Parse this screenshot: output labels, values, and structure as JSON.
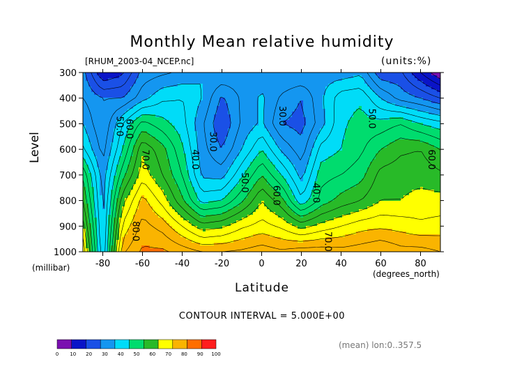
{
  "chart_data": {
    "type": "heatmap",
    "title": "Monthly Mean relative humidity",
    "subtitle": "[RHUM_2003-04_NCEP.nc]",
    "units_label": "(units:%)",
    "xlabel": "Latitude",
    "x_unit_label": "(degrees_north)",
    "ylabel": "Level",
    "y_unit_label": "(millibar)",
    "xlim": [
      -90,
      90
    ],
    "ylim": [
      1000,
      300
    ],
    "x_ticks": [
      -80,
      -60,
      -40,
      -20,
      0,
      20,
      40,
      60,
      80
    ],
    "y_ticks": [
      300,
      400,
      500,
      600,
      700,
      800,
      900,
      1000
    ],
    "contour_interval_label": "CONTOUR INTERVAL = 5.000E+00",
    "mean_note": "(mean) lon:0..357.5",
    "contour_labels": [
      {
        "text": "50.0",
        "lat": -73,
        "lev": 510
      },
      {
        "text": "60.0",
        "lat": -68,
        "lev": 520
      },
      {
        "text": "70.0",
        "lat": -60,
        "lev": 640
      },
      {
        "text": "80.0",
        "lat": -65,
        "lev": 920
      },
      {
        "text": "30.0",
        "lat": -26,
        "lev": 570
      },
      {
        "text": "40.0",
        "lat": -35,
        "lev": 640
      },
      {
        "text": "50.0",
        "lat": -10,
        "lev": 730
      },
      {
        "text": "30.0",
        "lat": 9,
        "lev": 470
      },
      {
        "text": "60.0",
        "lat": 6,
        "lev": 780
      },
      {
        "text": "40.0",
        "lat": 26,
        "lev": 770
      },
      {
        "text": "70.0",
        "lat": 32,
        "lev": 960
      },
      {
        "text": "50.0",
        "lat": 54,
        "lev": 480
      },
      {
        "text": "60.0",
        "lat": 84,
        "lev": 640
      }
    ],
    "lat_grid": [
      -90,
      -80,
      -70,
      -60,
      -50,
      -40,
      -30,
      -20,
      -10,
      0,
      10,
      20,
      30,
      40,
      50,
      60,
      70,
      80,
      90
    ],
    "lev_grid": [
      300,
      400,
      500,
      600,
      700,
      800,
      900,
      1000
    ],
    "values": [
      [
        32,
        15,
        19,
        32,
        34,
        36,
        40,
        40,
        38,
        37,
        40,
        40,
        38,
        37,
        39,
        26,
        26,
        15,
        5
      ],
      [
        35,
        30,
        30,
        38,
        44,
        45,
        40,
        29,
        36,
        41,
        34,
        30,
        39,
        48,
        49,
        40,
        33,
        30,
        25
      ],
      [
        40,
        30,
        45,
        57,
        52,
        47,
        36,
        25,
        36,
        41,
        30,
        28,
        38,
        49,
        52,
        52,
        55,
        50,
        47
      ],
      [
        46,
        33,
        50,
        69,
        62,
        51,
        37,
        30,
        40,
        50,
        39,
        32,
        47,
        50,
        54,
        60,
        64,
        65,
        60
      ],
      [
        59,
        37,
        58,
        73,
        65,
        55,
        39,
        38,
        49,
        60,
        50,
        38,
        53,
        55,
        58,
        67,
        68,
        68,
        66
      ],
      [
        65,
        38,
        68,
        82,
        73,
        61,
        48,
        50,
        59,
        70,
        62,
        46,
        57,
        62,
        65,
        70,
        70,
        72,
        72
      ],
      [
        72,
        39,
        76,
        87,
        83,
        75,
        67,
        69,
        74,
        77,
        74,
        68,
        72,
        75,
        78,
        79,
        78,
        76,
        77
      ],
      [
        79,
        40,
        84,
        91,
        91,
        88,
        85,
        85,
        86,
        88,
        86,
        88,
        88,
        87,
        88,
        90,
        87,
        87,
        85
      ]
    ],
    "levels": [
      0,
      10,
      20,
      30,
      40,
      50,
      60,
      70,
      80,
      90,
      100
    ],
    "colors": [
      "#7a10b0",
      "#0a14c8",
      "#1a50e6",
      "#1496f0",
      "#00dcf8",
      "#00dc6e",
      "#28ba28",
      "#ffff00",
      "#fab400",
      "#ff6e00",
      "#ff1e1e"
    ],
    "colorbar_ticks": [
      "0",
      "10",
      "20",
      "30",
      "40",
      "50",
      "60",
      "70",
      "80",
      "90",
      "100"
    ]
  }
}
